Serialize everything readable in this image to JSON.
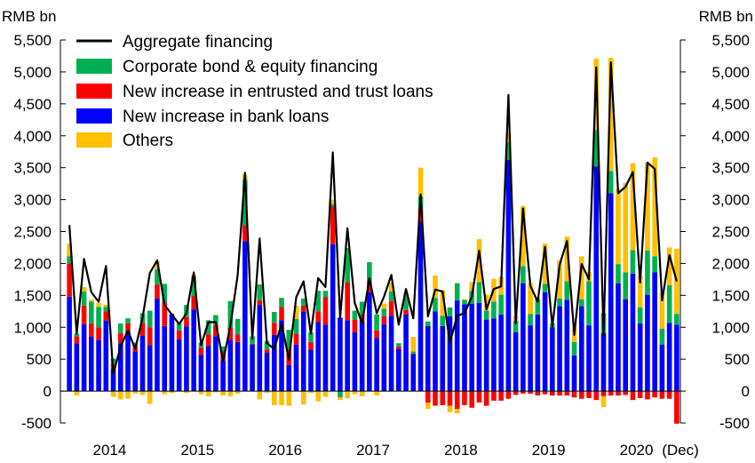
{
  "chart_data": {
    "type": "bar",
    "stacked": true,
    "unit_left": "RMB bn",
    "unit_right": "RMB bn",
    "ylim": [
      -500,
      5500
    ],
    "y_ticks": [
      -500,
      0,
      500,
      1000,
      1500,
      2000,
      2500,
      3000,
      3500,
      4000,
      4500,
      5000,
      5500
    ],
    "y_tick_labels": [
      "-500",
      "0",
      "500",
      "1,000",
      "1,500",
      "2,000",
      "2,500",
      "3,000",
      "3,500",
      "4,000",
      "4,500",
      "5,000",
      "5,500"
    ],
    "x_labels": [
      {
        "text": "2014",
        "month": 6
      },
      {
        "text": "2015",
        "month": 18
      },
      {
        "text": "2016",
        "month": 30
      },
      {
        "text": "2017",
        "month": 42
      },
      {
        "text": "2018",
        "month": 54
      },
      {
        "text": "2019",
        "month": 66
      },
      {
        "text": "2020",
        "month": 78
      },
      {
        "text": "(Dec)",
        "month": 84
      }
    ],
    "legend_position": "top-left",
    "line_series": {
      "name": "Aggregate financing",
      "color": "#000000",
      "values": [
        2600,
        900,
        2070,
        1550,
        1400,
        1960,
        270,
        700,
        950,
        660,
        1150,
        1850,
        2050,
        1350,
        1200,
        1050,
        1220,
        1860,
        720,
        1080,
        1080,
        470,
        1020,
        1820,
        3420,
        820,
        2390,
        750,
        660,
        1060,
        490,
        1470,
        1720,
        900,
        1770,
        1630,
        3740,
        1150,
        2550,
        1380,
        1060,
        1770,
        1220,
        1480,
        1820,
        1040,
        1600,
        1140,
        3080,
        1170,
        1590,
        1560,
        760,
        1180,
        1220,
        1480,
        2200,
        1280,
        1600,
        1640,
        4640,
        1060,
        2860,
        1650,
        1400,
        2260,
        1010,
        1980,
        2350,
        880,
        1990,
        1750,
        5070,
        870,
        5150,
        3100,
        3200,
        3430,
        1700,
        3580,
        3480,
        1420,
        2130,
        1720
      ]
    },
    "series": [
      {
        "name": "New increase in bank loans",
        "color": "#0000ff",
        "values": [
          1480,
          750,
          1050,
          850,
          800,
          1100,
          360,
          750,
          930,
          620,
          870,
          720,
          1450,
          1020,
          1200,
          810,
          1010,
          1280,
          570,
          710,
          860,
          480,
          800,
          770,
          2350,
          730,
          1350,
          600,
          880,
          1110,
          410,
          730,
          1240,
          650,
          1080,
          1040,
          2300,
          1150,
          1110,
          920,
          1100,
          1550,
          830,
          1050,
          1180,
          660,
          1200,
          580,
          2650,
          1020,
          1250,
          1020,
          1170,
          1420,
          1360,
          1370,
          1380,
          1120,
          1140,
          1200,
          3620,
          920,
          1690,
          1030,
          1200,
          1550,
          1000,
          1330,
          1430,
          560,
          1330,
          1030,
          3520,
          910,
          3100,
          1690,
          1440,
          1840,
          1060,
          1510,
          1860,
          730,
          1070,
          1040
        ]
      },
      {
        "name": "New increase in entrusted and trust loans",
        "color": "#ff0000",
        "values": [
          520,
          110,
          290,
          210,
          200,
          150,
          70,
          160,
          130,
          80,
          200,
          280,
          220,
          370,
          10,
          140,
          150,
          210,
          110,
          180,
          170,
          150,
          190,
          120,
          250,
          10,
          70,
          50,
          190,
          210,
          230,
          170,
          100,
          120,
          170,
          430,
          590,
          0,
          590,
          200,
          100,
          170,
          120,
          120,
          230,
          40,
          70,
          10,
          200,
          -180,
          -230,
          -220,
          -230,
          -280,
          -220,
          -260,
          -180,
          -230,
          -150,
          -150,
          -120,
          -60,
          -40,
          -40,
          -70,
          -50,
          -70,
          -70,
          -70,
          -100,
          -120,
          -110,
          -140,
          -80,
          -70,
          -70,
          -60,
          -140,
          -110,
          -130,
          -100,
          -120,
          -120,
          -510
        ]
      },
      {
        "name": "Corporate bond & equity financing",
        "color": "#00b050",
        "values": [
          110,
          40,
          220,
          340,
          320,
          70,
          80,
          150,
          80,
          60,
          150,
          260,
          240,
          290,
          0,
          110,
          190,
          300,
          80,
          220,
          160,
          70,
          420,
          240,
          710,
          120,
          250,
          130,
          170,
          140,
          320,
          230,
          110,
          150,
          320,
          100,
          40,
          -100,
          540,
          140,
          200,
          300,
          250,
          120,
          150,
          50,
          230,
          30,
          200,
          70,
          210,
          160,
          140,
          270,
          70,
          200,
          330,
          140,
          260,
          310,
          280,
          180,
          270,
          180,
          240,
          130,
          60,
          120,
          290,
          210,
          110,
          690,
          570,
          310,
          350,
          300,
          420,
          370,
          250,
          690,
          250,
          250,
          590,
          170
        ]
      },
      {
        "name": "Others",
        "color": "#ffc000",
        "values": [
          200,
          -70,
          70,
          30,
          60,
          30,
          -90,
          -130,
          -120,
          -40,
          -60,
          -200,
          120,
          -50,
          -30,
          10,
          -30,
          30,
          -50,
          -80,
          -20,
          -70,
          -80,
          -40,
          80,
          0,
          -130,
          -30,
          -220,
          -220,
          -230,
          210,
          -210,
          -30,
          -160,
          -90,
          70,
          -40,
          -110,
          -50,
          -80,
          0,
          -70,
          80,
          140,
          0,
          40,
          230,
          450,
          -100,
          350,
          400,
          -100,
          -70,
          10,
          140,
          670,
          250,
          360,
          280,
          140,
          80,
          940,
          480,
          30,
          630,
          0,
          600,
          700,
          210,
          670,
          150,
          1120,
          -170,
          1770,
          1180,
          1400,
          1360,
          500,
          1380,
          1550,
          560,
          590,
          1020
        ]
      }
    ]
  }
}
